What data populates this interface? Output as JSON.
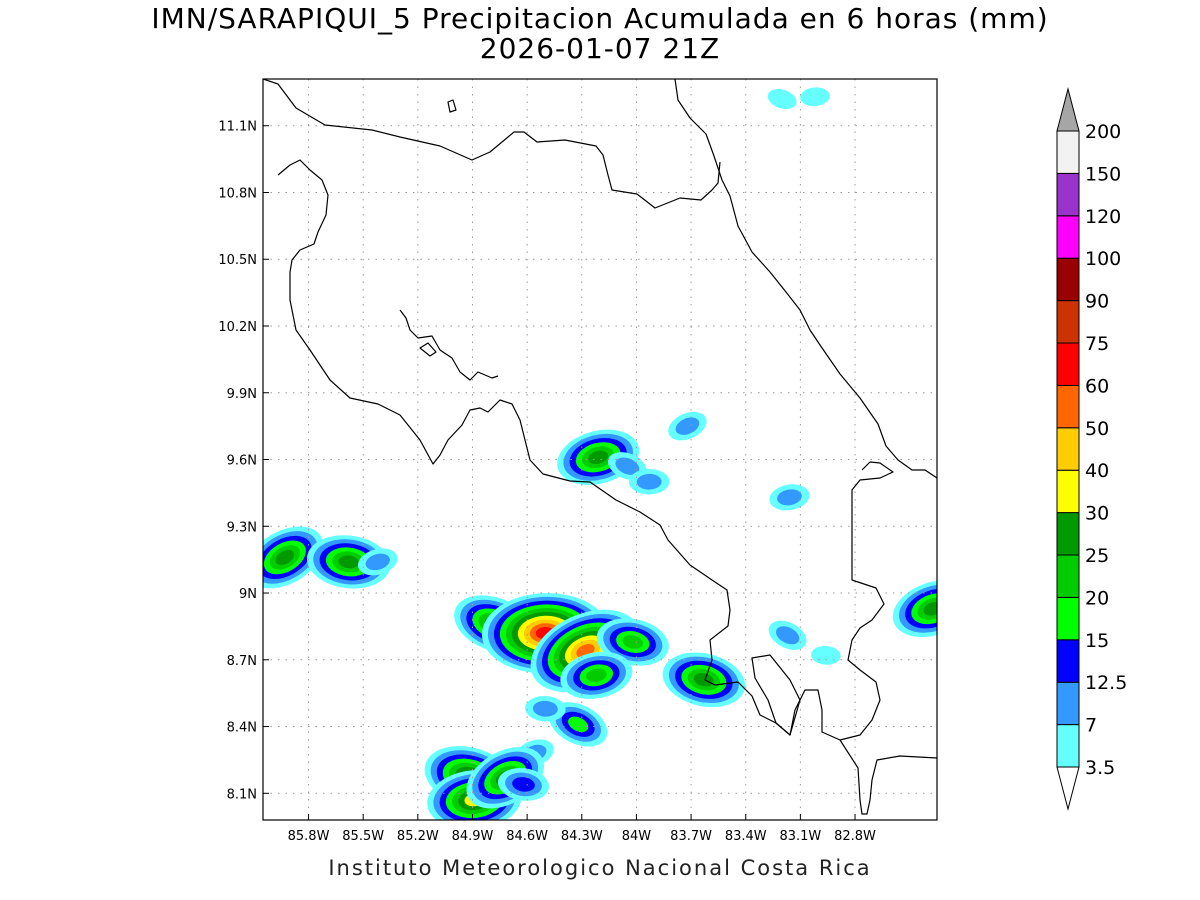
{
  "title_line1": "IMN/SARAPIQUI_5 Precipitacion Acumulada en 6 horas (mm)",
  "title_line2": "2026-01-07 21Z",
  "credit": "Instituto Meteorologico Nacional Costa Rica",
  "map": {
    "lon_range": [
      -86.05,
      -82.35
    ],
    "lat_range": [
      7.98,
      11.31
    ],
    "lon_ticks": [
      "85.8W",
      "85.5W",
      "85.2W",
      "84.9W",
      "84.6W",
      "84.3W",
      "84W",
      "83.7W",
      "83.4W",
      "83.1W",
      "82.8W"
    ],
    "lat_ticks": [
      "8.1N",
      "8.4N",
      "8.7N",
      "9N",
      "9.3N",
      "9.6N",
      "9.9N",
      "10.2N",
      "10.5N",
      "10.8N",
      "11.1N"
    ]
  },
  "colorbar": {
    "levels": [
      "3.5",
      "7",
      "12.5",
      "15",
      "20",
      "25",
      "30",
      "40",
      "50",
      "60",
      "75",
      "90",
      "100",
      "120",
      "150",
      "200"
    ],
    "colors": [
      "#66ffff",
      "#3399ff",
      "#0000ff",
      "#00ff00",
      "#00cc00",
      "#009900",
      "#ffff00",
      "#ffcc00",
      "#ff6600",
      "#ff0000",
      "#cc3300",
      "#990000",
      "#ff00ff",
      "#9933cc",
      "#f2f2f2"
    ],
    "overflow_color": "#a6a6a6",
    "underflow_color": "#ffffff"
  },
  "precip_cells": [
    {
      "lon": -85.93,
      "lat": 9.16,
      "peak_mm": 25
    },
    {
      "lon": -85.58,
      "lat": 9.14,
      "peak_mm": 25
    },
    {
      "lon": -85.42,
      "lat": 9.14,
      "peak_mm": 7
    },
    {
      "lon": -84.78,
      "lat": 8.86,
      "peak_mm": 25
    },
    {
      "lon": -84.5,
      "lat": 8.82,
      "peak_mm": 60
    },
    {
      "lon": -84.28,
      "lat": 8.74,
      "peak_mm": 50
    },
    {
      "lon": -84.02,
      "lat": 8.78,
      "peak_mm": 20
    },
    {
      "lon": -84.22,
      "lat": 8.63,
      "peak_mm": 20
    },
    {
      "lon": -84.32,
      "lat": 8.41,
      "peak_mm": 15
    },
    {
      "lon": -84.5,
      "lat": 8.48,
      "peak_mm": 7
    },
    {
      "lon": -84.56,
      "lat": 8.28,
      "peak_mm": 7
    },
    {
      "lon": -84.91,
      "lat": 8.17,
      "peak_mm": 30
    },
    {
      "lon": -84.89,
      "lat": 8.07,
      "peak_mm": 30
    },
    {
      "lon": -84.72,
      "lat": 8.17,
      "peak_mm": 25
    },
    {
      "lon": -84.62,
      "lat": 8.14,
      "peak_mm": 12.5
    },
    {
      "lon": -84.21,
      "lat": 9.61,
      "peak_mm": 25
    },
    {
      "lon": -84.05,
      "lat": 9.57,
      "peak_mm": 7
    },
    {
      "lon": -83.93,
      "lat": 9.5,
      "peak_mm": 7
    },
    {
      "lon": -83.72,
      "lat": 9.75,
      "peak_mm": 7
    },
    {
      "lon": -83.63,
      "lat": 8.61,
      "peak_mm": 25
    },
    {
      "lon": -83.16,
      "lat": 9.43,
      "peak_mm": 7
    },
    {
      "lon": -83.17,
      "lat": 8.81,
      "peak_mm": 7
    },
    {
      "lon": -82.96,
      "lat": 8.72,
      "peak_mm": 3.5
    },
    {
      "lon": -82.37,
      "lat": 8.93,
      "peak_mm": 25
    },
    {
      "lon": -83.2,
      "lat": 11.22,
      "peak_mm": 3.5
    },
    {
      "lon": -83.02,
      "lat": 11.23,
      "peak_mm": 3.5
    }
  ]
}
